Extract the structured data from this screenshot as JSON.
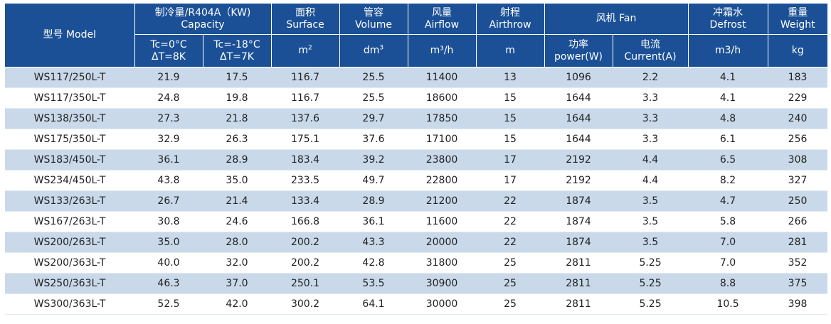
{
  "table": {
    "header_top": {
      "model": "型号 Model",
      "capacity_l1": "制冷量/R404A（KW)",
      "capacity_l2": "Capacity",
      "surface_l1": "面积",
      "surface_l2": "Surface",
      "volume_l1": "管容",
      "volume_l2": "Volume",
      "airflow_l1": "风量",
      "airflow_l2": "Airflow",
      "airthrow_l1": "射程",
      "airthrow_l2": "Airthrow",
      "fan": "风机 Fan",
      "defrost_l1": "冲霜水",
      "defrost_l2": "Defrost",
      "weight_l1": "重量",
      "weight_l2": "Weight"
    },
    "header_sub": {
      "cap1_l1": "Tc=0°C",
      "cap1_l2": "ΔT=8K",
      "cap2_l1": "Tc=-18°C",
      "cap2_l2": "ΔT=7K",
      "surface_unit": "m",
      "surface_sup": "2",
      "volume_unit": "dm",
      "volume_sup": "3",
      "airflow_unit": "m³/h",
      "airthrow_unit": "m",
      "power_l1": "功率",
      "power_l2": "power(W)",
      "current_l1": "电流",
      "current_l2": "Current(A)",
      "defrost_unit": "m3/h",
      "weight_unit": "kg"
    },
    "rows": [
      [
        "WS117/250L-T",
        "21.9",
        "17.5",
        "116.7",
        "25.5",
        "11400",
        "13",
        "1096",
        "2.2",
        "4.1",
        "183"
      ],
      [
        "WS117/350L-T",
        "24.8",
        "19.8",
        "116.7",
        "25.5",
        "18600",
        "15",
        "1644",
        "3.3",
        "4.1",
        "229"
      ],
      [
        "WS138/350L-T",
        "27.3",
        "21.8",
        "137.6",
        "29.7",
        "17850",
        "15",
        "1644",
        "3.3",
        "4.8",
        "240"
      ],
      [
        "WS175/350L-T",
        "32.9",
        "26.3",
        "175.1",
        "37.6",
        "17100",
        "15",
        "1644",
        "3.3",
        "6.1",
        "256"
      ],
      [
        "WS183/450L-T",
        "36.1",
        "28.9",
        "183.4",
        "39.2",
        "23800",
        "17",
        "2192",
        "4.4",
        "6.5",
        "308"
      ],
      [
        "WS234/450L-T",
        "43.8",
        "35.0",
        "233.5",
        "49.7",
        "22800",
        "17",
        "2192",
        "4.4",
        "8.2",
        "327"
      ],
      [
        "WS133/263L-T",
        "26.7",
        "21.4",
        "133.4",
        "28.9",
        "21200",
        "22",
        "1874",
        "3.5",
        "4.7",
        "250"
      ],
      [
        "WS167/263L-T",
        "30.8",
        "24.6",
        "166.8",
        "36.1",
        "11600",
        "22",
        "1874",
        "3.5",
        "5.8",
        "266"
      ],
      [
        "WS200/263L-T",
        "35.0",
        "28.0",
        "200.2",
        "43.3",
        "20000",
        "22",
        "1874",
        "3.5",
        "7.0",
        "281"
      ],
      [
        "WS200/363L-T",
        "40.0",
        "32.0",
        "200.2",
        "42.8",
        "31800",
        "25",
        "2811",
        "5.25",
        "7.0",
        "352"
      ],
      [
        "WS250/363L-T",
        "46.3",
        "37.0",
        "250.1",
        "53.5",
        "30900",
        "25",
        "2811",
        "5.25",
        "8.8",
        "375"
      ],
      [
        "WS300/363L-T",
        "52.5",
        "42.0",
        "300.2",
        "64.1",
        "30000",
        "25",
        "2811",
        "5.25",
        "10.5",
        "398"
      ]
    ]
  }
}
